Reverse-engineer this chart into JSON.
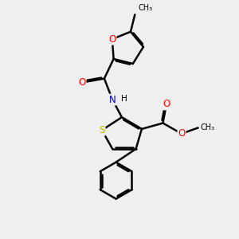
{
  "bg_color": "#efefef",
  "bond_color": "#000000",
  "bond_width": 1.8,
  "dbo": 0.055,
  "atom_colors": {
    "O": "#ff0000",
    "N": "#0000cc",
    "S": "#bbbb00",
    "C": "#000000",
    "H": "#000000"
  },
  "fs": 8.5,
  "figsize": [
    3.0,
    3.0
  ],
  "dpi": 100
}
